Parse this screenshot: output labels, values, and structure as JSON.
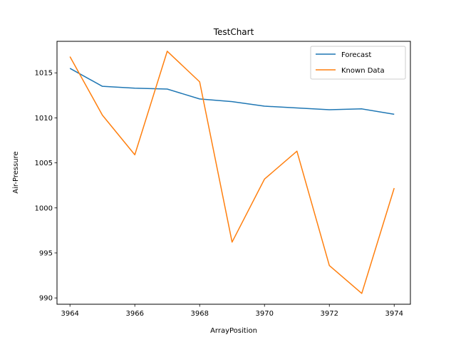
{
  "chart_data": {
    "type": "line",
    "title": "TestChart",
    "xlabel": "ArrayPosition",
    "ylabel": "Air-Pressure",
    "xlim": [
      3963.6,
      3974.5
    ],
    "ylim": [
      989.3,
      1018.5
    ],
    "x_ticks": [
      3964,
      3966,
      3968,
      3970,
      3972,
      3974
    ],
    "y_ticks": [
      990,
      995,
      1000,
      1005,
      1010,
      1015
    ],
    "grid": false,
    "legend_position": "top-right",
    "x": [
      3964,
      3965,
      3966,
      3967,
      3968,
      3969,
      3970,
      3971,
      3972,
      3973,
      3974
    ],
    "series": [
      {
        "name": "Forecast",
        "color": "#1f77b4",
        "values": [
          1015.5,
          1013.5,
          1013.3,
          1013.2,
          1012.1,
          1011.8,
          1011.3,
          1011.1,
          1010.9,
          1011.0,
          1010.4
        ]
      },
      {
        "name": "Known Data",
        "color": "#ff7f0e",
        "values": [
          1016.8,
          1010.3,
          1005.9,
          1017.4,
          1014.0,
          996.2,
          1003.2,
          1006.3,
          993.6,
          990.5,
          1002.2
        ]
      }
    ]
  }
}
